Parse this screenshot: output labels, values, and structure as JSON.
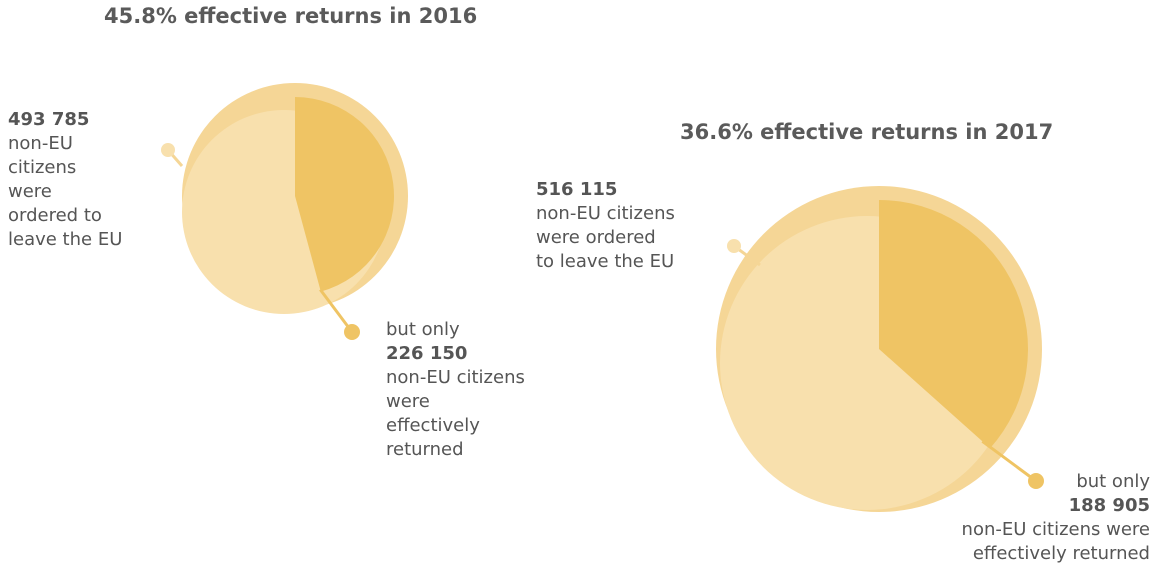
{
  "chart_data": [
    {
      "type": "pie",
      "title": "45.8% effective returns in 2016",
      "year": "2016",
      "effective_return_rate_percent": 45.8,
      "ordered_to_leave": 493785,
      "effectively_returned": 226150,
      "ordered_label": {
        "number": "493 785",
        "text": "non-EU citizens were ordered to leave the EU",
        "lines": [
          "non-EU",
          "citizens",
          "were",
          "ordered to",
          "leave the EU"
        ]
      },
      "returned_label": {
        "prefix": "but only",
        "number": "226 150",
        "text": "non-EU citizens were effectively returned",
        "lines": [
          "non-EU citizens",
          "were",
          "effectively",
          "returned"
        ]
      }
    },
    {
      "type": "pie",
      "title": "36.6% effective returns in 2017",
      "year": "2017",
      "effective_return_rate_percent": 36.6,
      "ordered_to_leave": 516115,
      "effectively_returned": 188905,
      "ordered_label": {
        "number": "516 115",
        "text": "non-EU citizens were ordered to leave the EU",
        "lines": [
          "non-EU citizens",
          "were ordered",
          "to leave the EU"
        ]
      },
      "returned_label": {
        "prefix": "but only",
        "number": "188 905",
        "text": "non-EU citizens were effectively returned",
        "lines": [
          "non-EU citizens were",
          "effectively returned"
        ]
      }
    }
  ],
  "colors": {
    "ordered_fill": "#f8e0ad",
    "ordered_ring": "#f5d696",
    "returned_fill": "#efc464",
    "text": "#555555",
    "title": "#5a5a5a"
  }
}
